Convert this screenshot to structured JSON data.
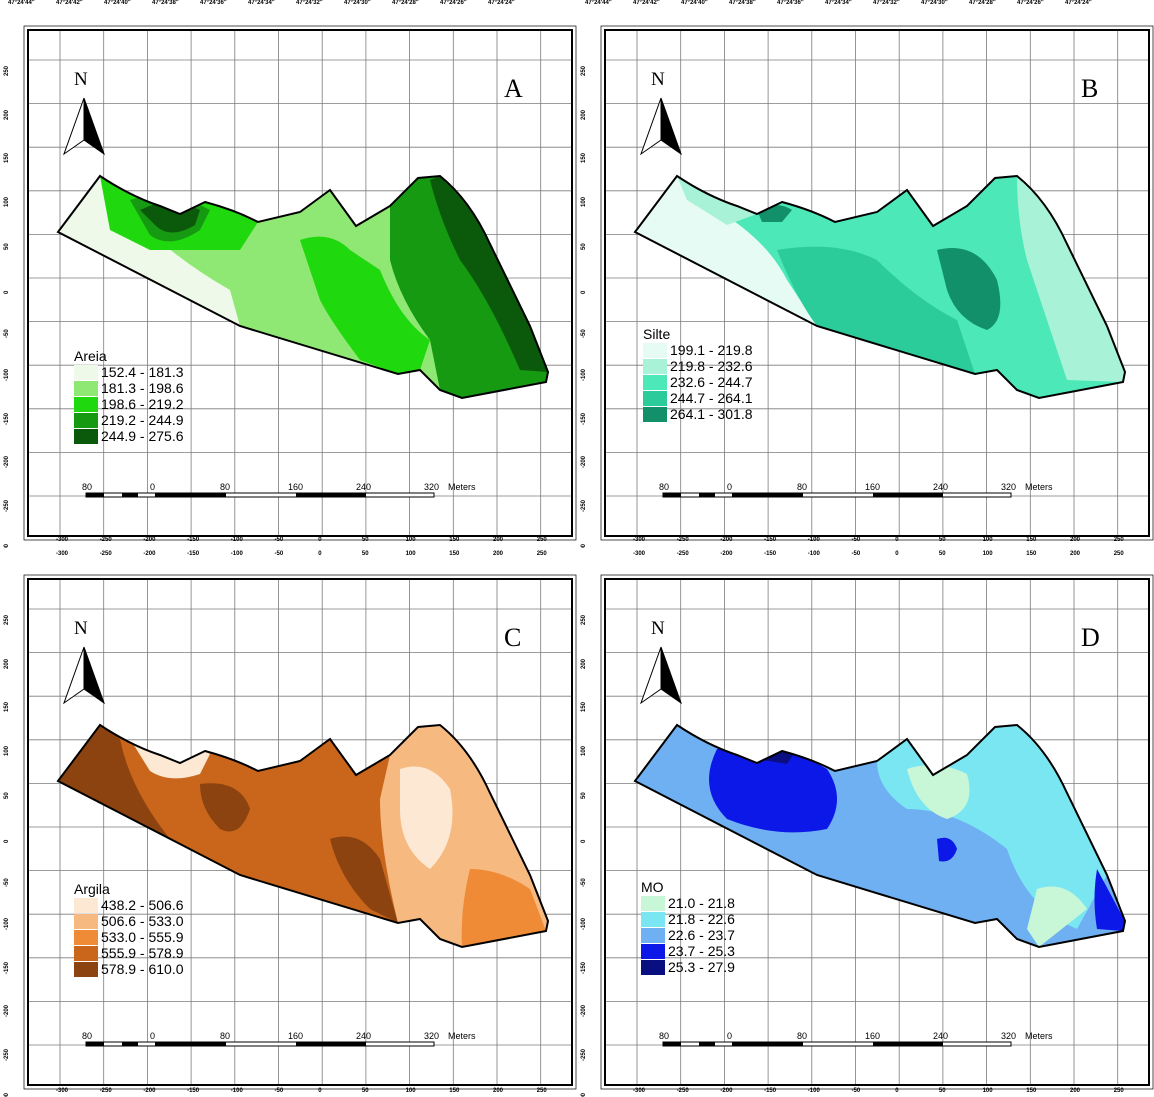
{
  "scale_bar": {
    "ticks": [
      "80",
      "0",
      "80",
      "160",
      "240",
      "320"
    ],
    "unit": "Meters"
  },
  "top_coords": [
    "47°24'44\"",
    "47°24'42\"",
    "47°24'40\"",
    "47°24'38\"",
    "47°24'36\"",
    "47°24'34\"",
    "47°24'32\"",
    "47°24'30\"",
    "47°24'28\"",
    "47°24'26\"",
    "47°24'24\""
  ],
  "x_ticks": [
    "-300",
    "-250",
    "-200",
    "-150",
    "-100",
    "-50",
    "0",
    "50",
    "100",
    "150",
    "200",
    "250"
  ],
  "y_ticks": [
    "250",
    "200",
    "150",
    "100",
    "50",
    "0",
    "-50",
    "-100",
    "-150",
    "-200",
    "-250",
    "-300"
  ],
  "north": "N",
  "panels": [
    {
      "letter": "A",
      "legend_title": "Areia",
      "classes": [
        {
          "range": "152.4 - 181.3",
          "color": "#eef9ea"
        },
        {
          "range": "181.3 - 198.6",
          "color": "#8fe873"
        },
        {
          "range": "198.6 - 219.2",
          "color": "#1fd80e"
        },
        {
          "range": "219.2 - 244.9",
          "color": "#159a11"
        },
        {
          "range": "244.9 - 275.6",
          "color": "#0b5a0b"
        }
      ]
    },
    {
      "letter": "B",
      "legend_title": "Silte",
      "classes": [
        {
          "range": "199.1 - 219.8",
          "color": "#e6fbf3"
        },
        {
          "range": "219.8 - 232.6",
          "color": "#a8f2d8"
        },
        {
          "range": "232.6 - 244.7",
          "color": "#4de8b8"
        },
        {
          "range": "244.7 - 264.1",
          "color": "#2ccc9a"
        },
        {
          "range": "264.1 - 301.8",
          "color": "#12906a"
        }
      ]
    },
    {
      "letter": "C",
      "legend_title": "Argila",
      "classes": [
        {
          "range": "438.2 - 506.6",
          "color": "#fde8d4"
        },
        {
          "range": "506.6 - 533.0",
          "color": "#f6b980"
        },
        {
          "range": "533.0 - 555.9",
          "color": "#ef8a36"
        },
        {
          "range": "555.9 - 578.9",
          "color": "#c9661b"
        },
        {
          "range": "578.9 - 610.0",
          "color": "#8c4310"
        }
      ]
    },
    {
      "letter": "D",
      "legend_title": "MO",
      "classes": [
        {
          "range": "21.0 - 21.8",
          "color": "#c8f7d8"
        },
        {
          "range": "21.8 - 22.6",
          "color": "#7ae6f2"
        },
        {
          "range": "22.6 - 23.7",
          "color": "#6fb0f2"
        },
        {
          "range": "23.7 - 25.3",
          "color": "#0c18e8"
        },
        {
          "range": "25.3 - 27.9",
          "color": "#0a0f80"
        }
      ]
    }
  ]
}
